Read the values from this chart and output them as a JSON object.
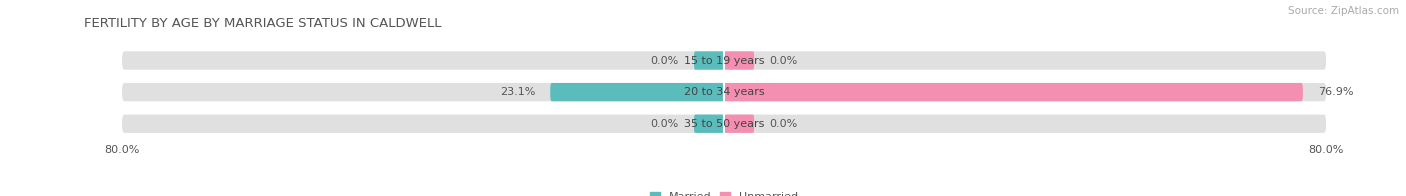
{
  "title": "FERTILITY BY AGE BY MARRIAGE STATUS IN CALDWELL",
  "source": "Source: ZipAtlas.com",
  "categories": [
    "15 to 19 years",
    "20 to 34 years",
    "35 to 50 years"
  ],
  "married_values": [
    0.0,
    23.1,
    0.0
  ],
  "unmarried_values": [
    0.0,
    76.9,
    0.0
  ],
  "x_min": -80.0,
  "x_max": 80.0,
  "married_color": "#5bbcbc",
  "unmarried_color": "#f48fb1",
  "bar_bg_color": "#e0e0e0",
  "bar_height": 0.58,
  "title_fontsize": 9.5,
  "label_fontsize": 8,
  "tick_fontsize": 8,
  "source_fontsize": 7.5
}
